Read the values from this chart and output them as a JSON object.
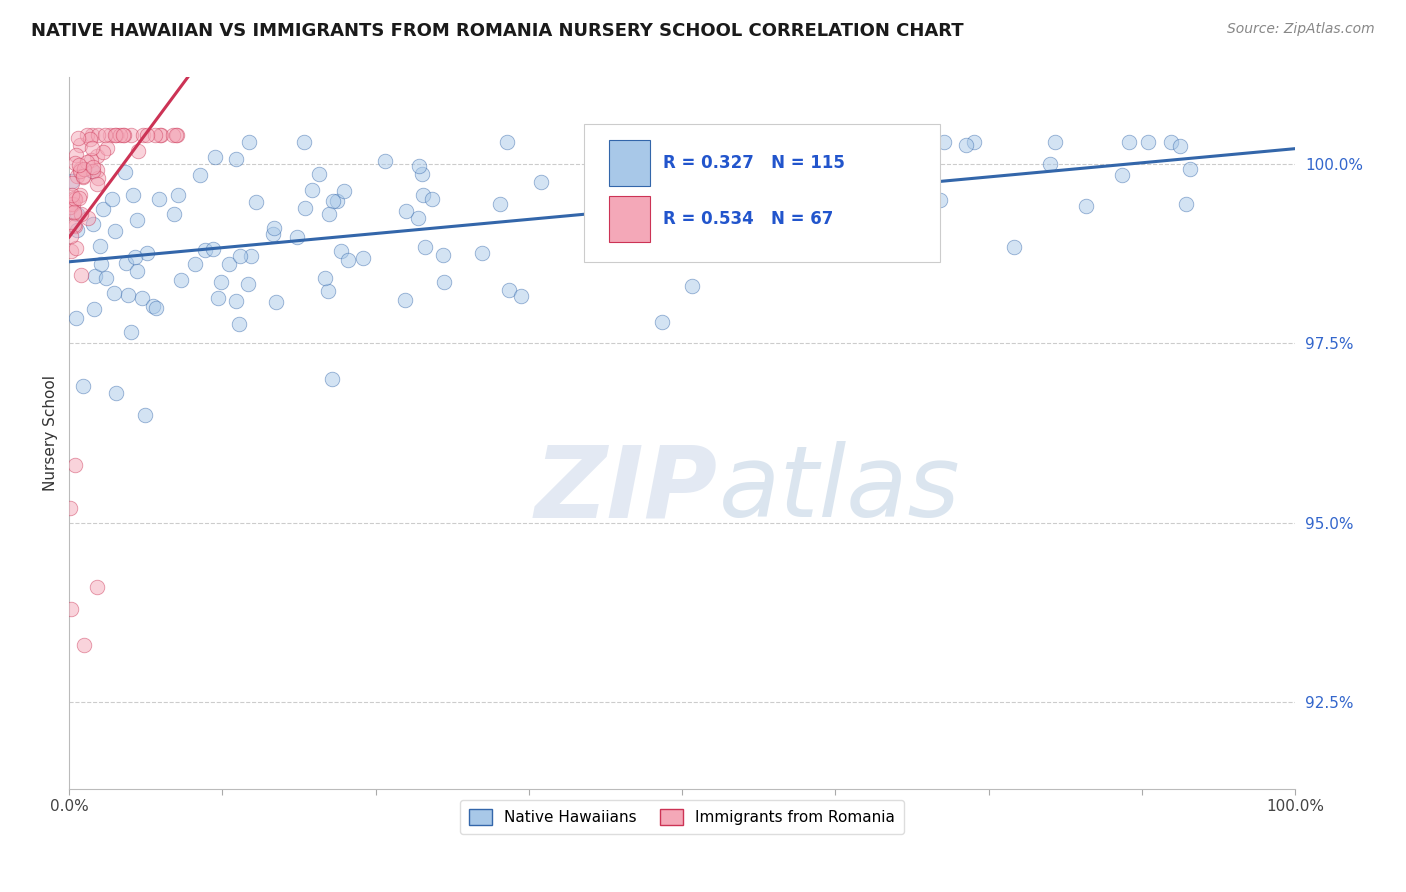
{
  "title": "NATIVE HAWAIIAN VS IMMIGRANTS FROM ROMANIA NURSERY SCHOOL CORRELATION CHART",
  "source": "Source: ZipAtlas.com",
  "ylabel": "Nursery School",
  "ytick_values": [
    92.5,
    95.0,
    97.5,
    100.0
  ],
  "xmin": 0.0,
  "xmax": 100.0,
  "ymin": 91.3,
  "ymax": 101.2,
  "legend_blue_label": "Native Hawaiians",
  "legend_pink_label": "Immigrants from Romania",
  "R_blue": 0.327,
  "N_blue": 115,
  "R_pink": 0.534,
  "N_pink": 67,
  "blue_color": "#a8c8e8",
  "pink_color": "#f4a8b8",
  "trendline_blue": "#3366aa",
  "trendline_pink": "#cc3355",
  "watermark_zip_color": "#c8d8ee",
  "watermark_atlas_color": "#b8cce0"
}
